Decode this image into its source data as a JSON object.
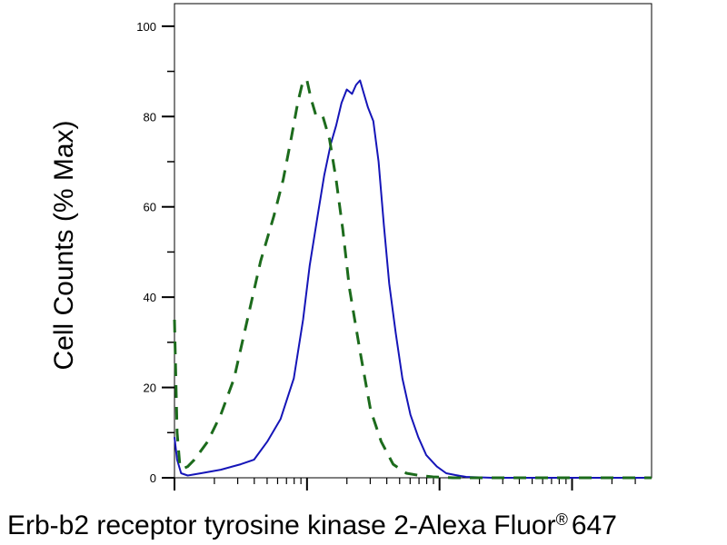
{
  "chart_data": {
    "type": "line",
    "title": "",
    "xlabel": "Erb-b2 receptor tyrosine kinase 2-Alexa Fluor",
    "xlabel_superscript": "®",
    "xlabel_suffix": "647",
    "ylabel": "Cell Counts (% Max)",
    "ylim": [
      0,
      105
    ],
    "yticks": [
      0,
      20,
      40,
      60,
      80,
      100
    ],
    "ytick_labels": [
      "0",
      "20",
      "40",
      "60",
      "80",
      "100"
    ],
    "x_scale": "log",
    "xlim_decades": [
      0,
      3.6
    ],
    "xtick_labels": [],
    "grid": false,
    "legend": "none",
    "series": [
      {
        "color": "#1515b8",
        "style": "solid",
        "x": [
          0,
          0.02,
          0.05,
          0.1,
          0.2,
          0.35,
          0.5,
          0.6,
          0.7,
          0.8,
          0.9,
          0.97,
          1.02,
          1.08,
          1.13,
          1.18,
          1.22,
          1.26,
          1.3,
          1.34,
          1.37,
          1.4,
          1.43,
          1.46,
          1.5,
          1.54,
          1.58,
          1.62,
          1.67,
          1.72,
          1.78,
          1.84,
          1.9,
          1.98,
          2.05,
          2.12,
          2.2,
          2.3,
          2.4,
          2.55,
          2.7,
          3.0,
          3.3,
          3.6
        ],
        "y": [
          9,
          4,
          1,
          0.5,
          1,
          1.8,
          3,
          4,
          8,
          13,
          22,
          35,
          47,
          58,
          67,
          74,
          78,
          83,
          86,
          85,
          87,
          88,
          85,
          82,
          79,
          70,
          56,
          43,
          32,
          22,
          14,
          9,
          5,
          2.5,
          1,
          0.6,
          0.2,
          0.1,
          0,
          0,
          0,
          0,
          0,
          0
        ]
      },
      {
        "color": "#1c6b1c",
        "style": "dashed",
        "x": [
          0,
          0.02,
          0.04,
          0.06,
          0.1,
          0.15,
          0.25,
          0.35,
          0.45,
          0.55,
          0.65,
          0.75,
          0.82,
          0.88,
          0.93,
          0.97,
          1.0,
          1.03,
          1.07,
          1.12,
          1.17,
          1.22,
          1.27,
          1.32,
          1.4,
          1.48,
          1.56,
          1.65,
          1.75,
          1.85,
          1.95,
          2.1,
          2.3,
          2.5,
          3.0,
          3.6
        ],
        "y": [
          35,
          10,
          3,
          2,
          2.5,
          4,
          8,
          14,
          22,
          35,
          48,
          58,
          66,
          75,
          83,
          88,
          88,
          84,
          80,
          80,
          75,
          66,
          55,
          42,
          28,
          15,
          8,
          3,
          1,
          0.5,
          0.2,
          0,
          0,
          0,
          0,
          0
        ]
      }
    ]
  }
}
